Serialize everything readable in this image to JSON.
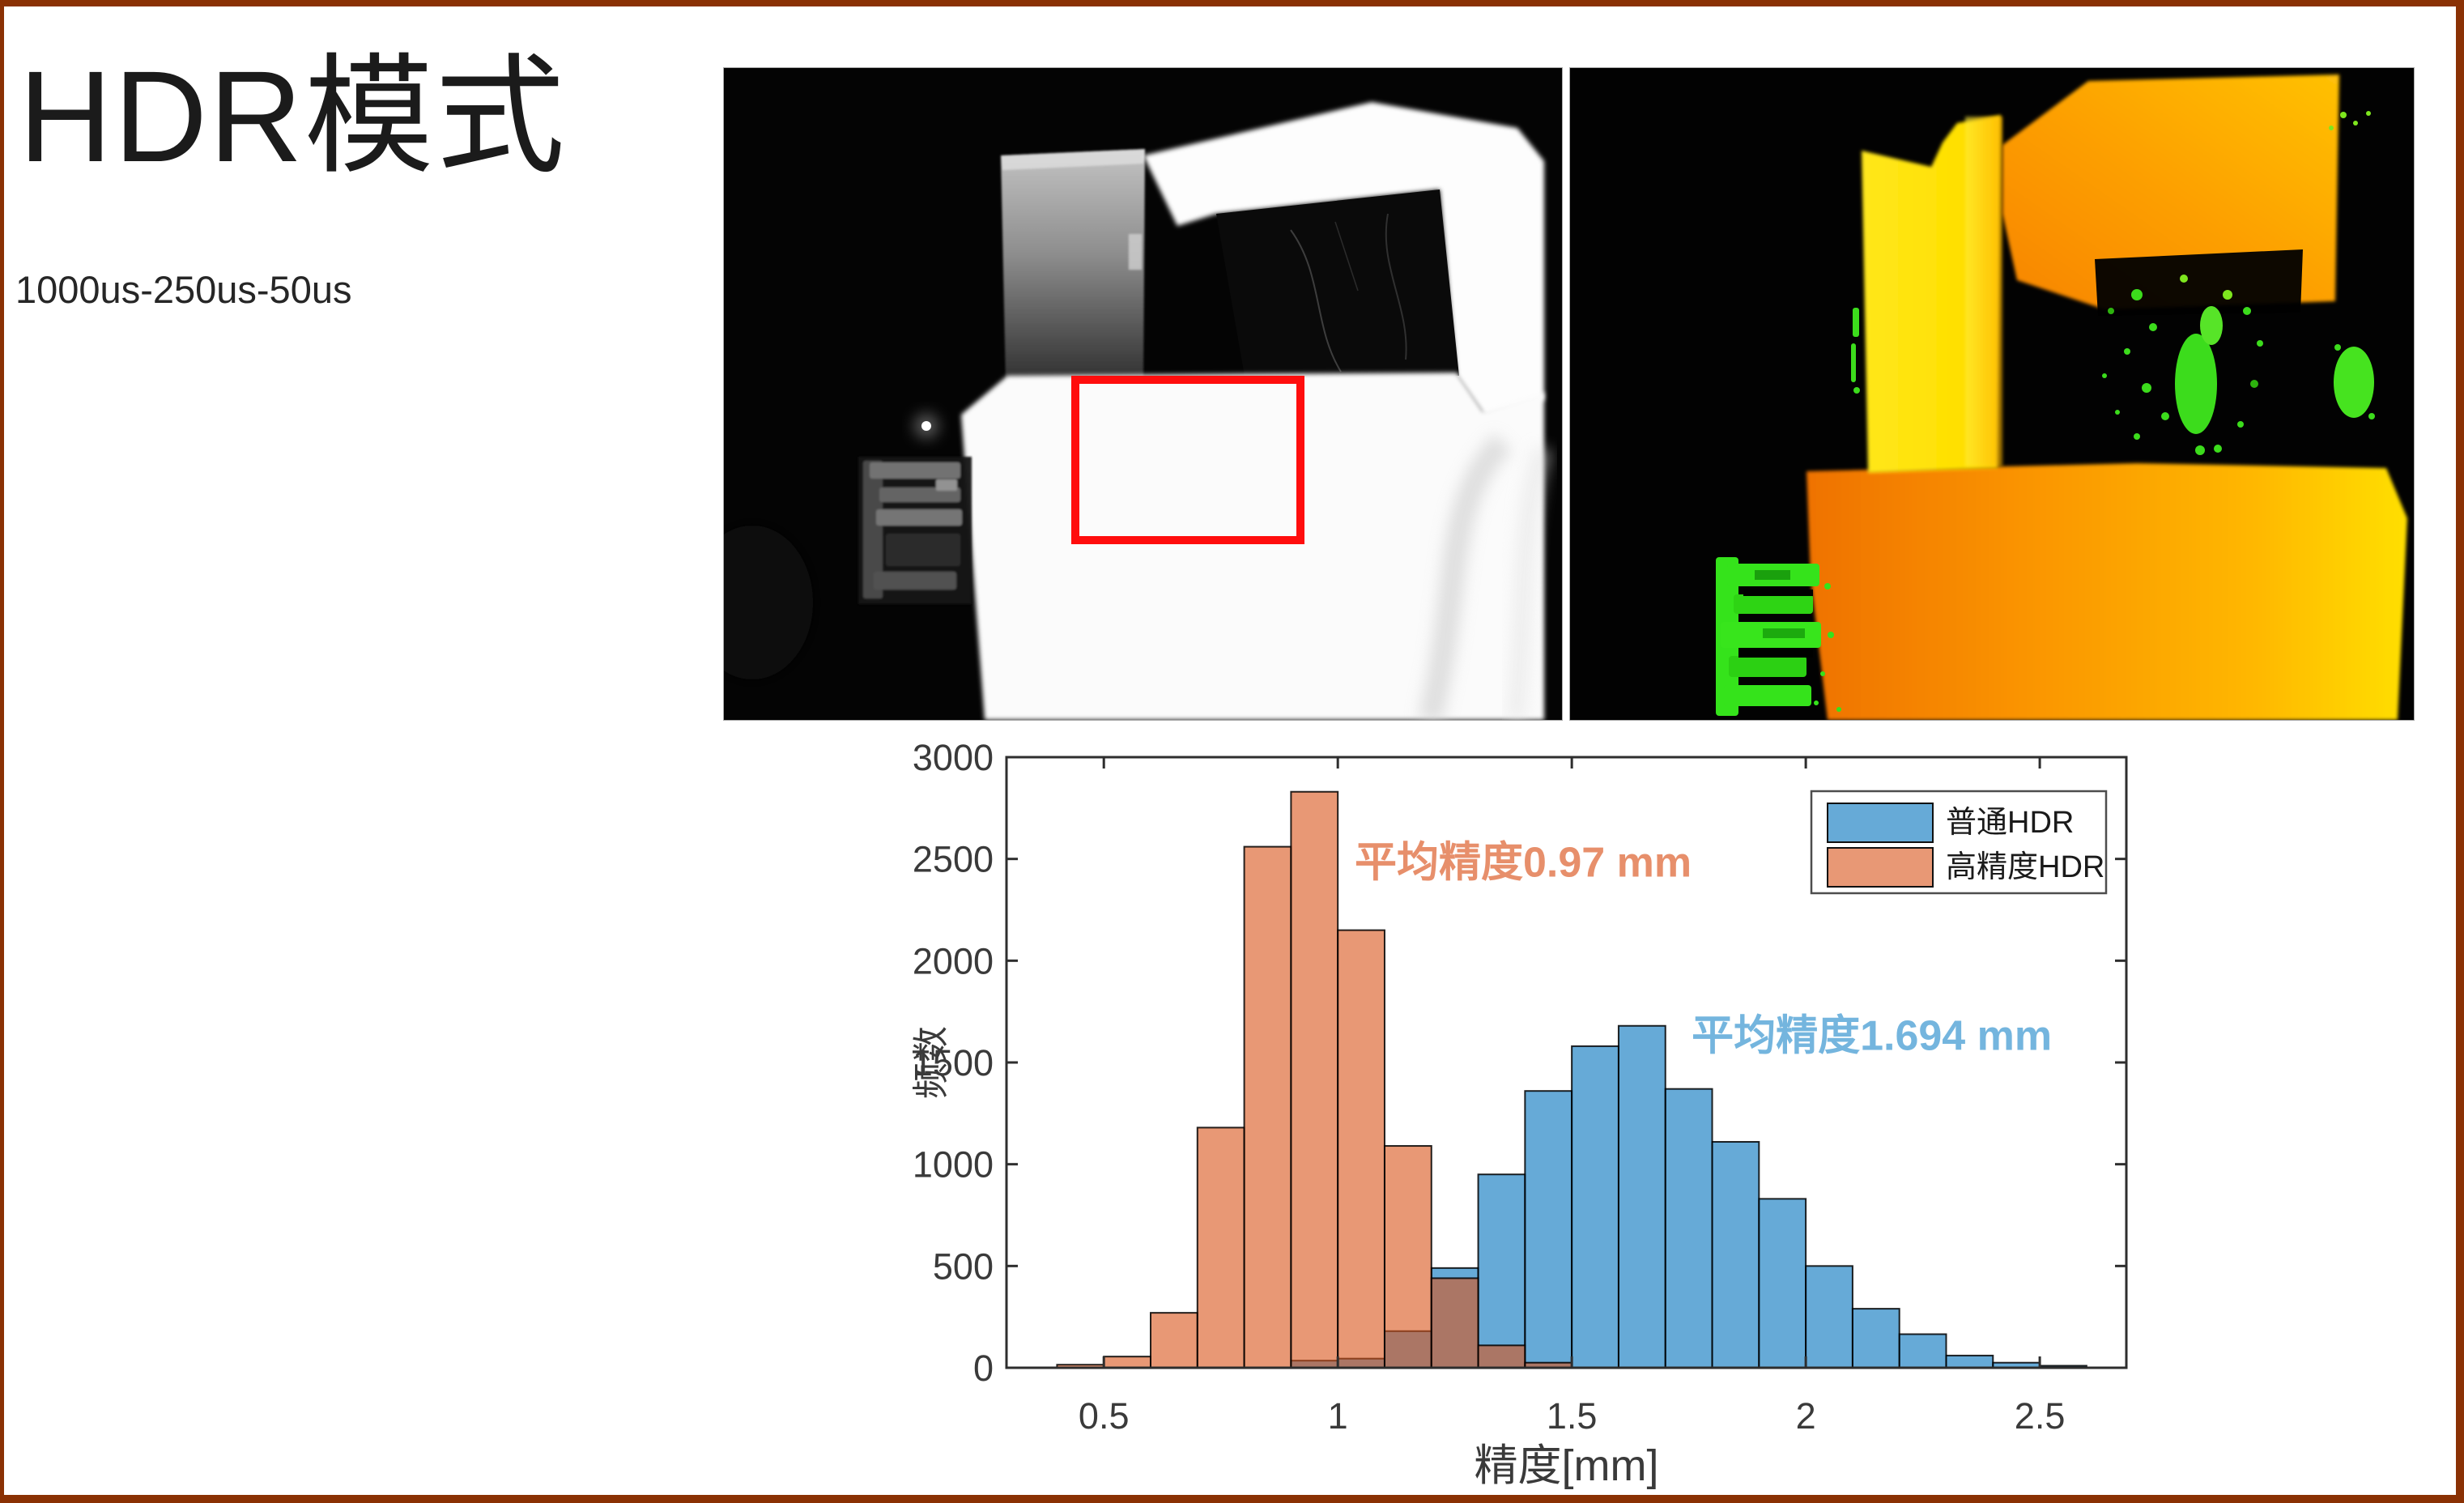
{
  "slide": {
    "title": "HDR模式",
    "subtitle": "1000us-250us-50us",
    "border_color": "#8a3104",
    "background": "#ffffff"
  },
  "ir_image": {
    "annotation_box_color": "#ff0d0d"
  },
  "depth_image": {
    "palette": [
      "#000000",
      "#ef7200",
      "#fa9300",
      "#ffb800",
      "#ffdf00",
      "#ffe71c",
      "#35e31b"
    ]
  },
  "chart_data": {
    "type": "bar",
    "subtype": "overlaid-histogram",
    "title": "",
    "xlabel": "精度[mm]",
    "ylabel": "频数",
    "xlim": [
      0.292,
      2.685
    ],
    "ylim": [
      0,
      3000
    ],
    "xticks": [
      0.5,
      1,
      1.5,
      2,
      2.5
    ],
    "xtick_labels": [
      "0.5",
      "1",
      "1.5",
      "2",
      "2.5"
    ],
    "yticks": [
      0,
      500,
      1000,
      1500,
      2000,
      2500,
      3000
    ],
    "ytick_labels": [
      "0",
      "500",
      "1000",
      "1500",
      "2000",
      "2500",
      "3000"
    ],
    "bin_width": 0.1,
    "grid": false,
    "legend_position": "top-right",
    "series": [
      {
        "name": "普通HDR",
        "color": "#0072BD",
        "alpha": 0.6,
        "bin_start": 0.9,
        "values": [
          35,
          45,
          180,
          490,
          950,
          1360,
          1580,
          1680,
          1370,
          1110,
          830,
          500,
          290,
          165,
          60,
          25,
          10
        ]
      },
      {
        "name": "高精度HDR",
        "color": "#D95319",
        "alpha": 0.6,
        "bin_start": 0.4,
        "values": [
          15,
          55,
          270,
          1180,
          2560,
          2830,
          2150,
          1090,
          440,
          110,
          25
        ]
      }
    ],
    "annotations": [
      {
        "text": "平均精度0.97 mm",
        "color": "#e78f6b",
        "x": 1.036,
        "y": 2480
      },
      {
        "text": "平均精度1.694 mm",
        "color": "#74b5de",
        "x": 1.756,
        "y": 1630
      }
    ]
  }
}
